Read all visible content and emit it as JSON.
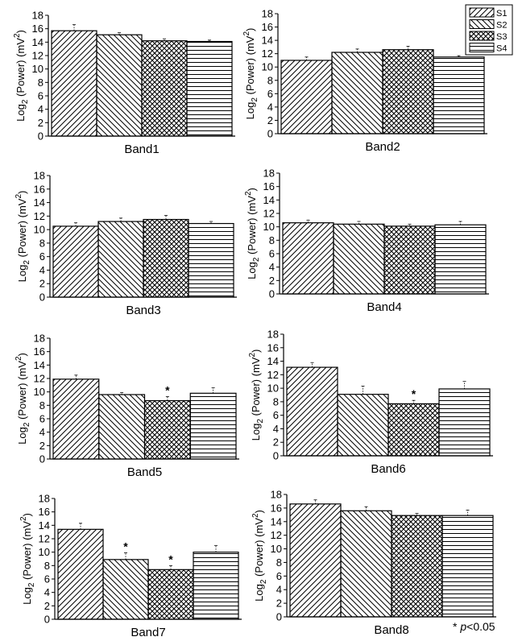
{
  "chart_data": [
    {
      "type": "bar",
      "title": "",
      "xlabel": "Band1",
      "ylabel": "Log2 (Power) (mV2)",
      "ylim": [
        0,
        18
      ],
      "yticks": [
        0,
        2,
        4,
        6,
        8,
        10,
        12,
        14,
        16,
        18
      ],
      "categories": [
        "S1",
        "S2",
        "S3",
        "S4"
      ],
      "values": [
        15.7,
        15.1,
        14.2,
        14.1
      ],
      "errors": [
        0.9,
        0.3,
        0.3,
        0.2
      ],
      "significant": [
        false,
        false,
        false,
        false
      ]
    },
    {
      "type": "bar",
      "title": "",
      "xlabel": "Band2",
      "ylabel": "Log2 (Power) (mV2)",
      "ylim": [
        0,
        18
      ],
      "yticks": [
        0,
        2,
        4,
        6,
        8,
        10,
        12,
        14,
        16,
        18
      ],
      "categories": [
        "S1",
        "S2",
        "S3",
        "S4"
      ],
      "values": [
        11.0,
        12.2,
        12.6,
        11.5
      ],
      "errors": [
        0.5,
        0.5,
        0.5,
        0.2
      ],
      "significant": [
        false,
        false,
        false,
        false
      ]
    },
    {
      "type": "bar",
      "title": "",
      "xlabel": "Band3",
      "ylabel": "Log2 (Power) (mV2)",
      "ylim": [
        0,
        18
      ],
      "yticks": [
        0,
        2,
        4,
        6,
        8,
        10,
        12,
        14,
        16,
        18
      ],
      "categories": [
        "S1",
        "S2",
        "S3",
        "S4"
      ],
      "values": [
        10.5,
        11.2,
        11.5,
        10.9
      ],
      "errors": [
        0.5,
        0.5,
        0.6,
        0.3
      ],
      "significant": [
        false,
        false,
        false,
        false
      ]
    },
    {
      "type": "bar",
      "title": "",
      "xlabel": "Band4",
      "ylabel": "Log2 (Power) (mV2)",
      "ylim": [
        0,
        18
      ],
      "yticks": [
        0,
        2,
        4,
        6,
        8,
        10,
        12,
        14,
        16,
        18
      ],
      "categories": [
        "S1",
        "S2",
        "S3",
        "S4"
      ],
      "values": [
        10.6,
        10.4,
        10.1,
        10.3
      ],
      "errors": [
        0.4,
        0.4,
        0.3,
        0.5
      ],
      "significant": [
        false,
        false,
        false,
        false
      ]
    },
    {
      "type": "bar",
      "title": "",
      "xlabel": "Band5",
      "ylabel": "Log2 (Power) (mV2)",
      "ylim": [
        0,
        18
      ],
      "yticks": [
        0,
        2,
        4,
        6,
        8,
        10,
        12,
        14,
        16,
        18
      ],
      "categories": [
        "S1",
        "S2",
        "S3",
        "S4"
      ],
      "values": [
        11.9,
        9.6,
        8.7,
        9.8
      ],
      "errors": [
        0.6,
        0.3,
        0.6,
        0.8
      ],
      "significant": [
        false,
        false,
        true,
        false
      ]
    },
    {
      "type": "bar",
      "title": "",
      "xlabel": "Band6",
      "ylabel": "Log2 (Power) (mV2)",
      "ylim": [
        0,
        18
      ],
      "yticks": [
        0,
        2,
        4,
        6,
        8,
        10,
        12,
        14,
        16,
        18
      ],
      "categories": [
        "S1",
        "S2",
        "S3",
        "S4"
      ],
      "values": [
        13.1,
        9.1,
        7.7,
        9.9
      ],
      "errors": [
        0.7,
        1.2,
        0.5,
        1.1
      ],
      "significant": [
        false,
        false,
        true,
        false
      ]
    },
    {
      "type": "bar",
      "title": "",
      "xlabel": "Band7",
      "ylabel": "Log2 (Power) (mV2)",
      "ylim": [
        0,
        18
      ],
      "yticks": [
        0,
        2,
        4,
        6,
        8,
        10,
        12,
        14,
        16,
        18
      ],
      "categories": [
        "S1",
        "S2",
        "S3",
        "S4"
      ],
      "values": [
        13.4,
        8.9,
        7.4,
        10.0
      ],
      "errors": [
        0.9,
        1.0,
        0.6,
        1.0
      ],
      "significant": [
        false,
        true,
        true,
        false
      ]
    },
    {
      "type": "bar",
      "title": "",
      "xlabel": "Band8",
      "ylabel": "Log2 (Power) (mV2)",
      "ylim": [
        0,
        18
      ],
      "yticks": [
        0,
        2,
        4,
        6,
        8,
        10,
        12,
        14,
        16,
        18
      ],
      "categories": [
        "S1",
        "S2",
        "S3",
        "S4"
      ],
      "values": [
        16.6,
        15.6,
        14.9,
        14.9
      ],
      "errors": [
        0.6,
        0.6,
        0.3,
        0.8
      ],
      "significant": [
        false,
        false,
        false,
        false
      ]
    }
  ],
  "legend": {
    "placement": "top-right",
    "items": [
      {
        "label": "S1",
        "pattern": "diag-right"
      },
      {
        "label": "S2",
        "pattern": "diag-left"
      },
      {
        "label": "S3",
        "pattern": "crosshatch"
      },
      {
        "label": "S4",
        "pattern": "horizontal"
      }
    ]
  },
  "ylabel_parts": {
    "pre": "Log",
    "sub": "2",
    "mid": " (Power) (mV",
    "sup": "2",
    "post": ")"
  },
  "significance_note": {
    "star": "* ",
    "p": "p",
    "rest": "<0.05"
  },
  "colors": {
    "ink": "#000000",
    "background": "#ffffff"
  }
}
